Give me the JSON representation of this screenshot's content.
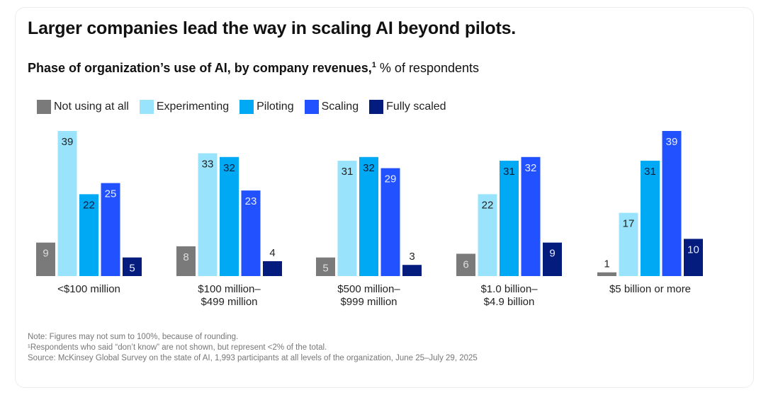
{
  "header": {
    "title": "Larger companies lead the way in scaling AI beyond pilots.",
    "subtitle_bold": "Phase of organization’s use of AI, by company revenues,",
    "subtitle_sup": "1",
    "subtitle_rest": " % of respondents"
  },
  "notes": {
    "line1": "Note: Figures may not sum to 100%, because of rounding.",
    "line2": "¹Respondents who said “don’t know” are not shown, but represent <2% of the total.",
    "line3": " Source: McKinsey Global Survey on the state of AI, 1,993 participants at all levels of the organization, June 25–July 29, 2025"
  },
  "chart_data": {
    "type": "bar",
    "title": "Larger companies lead the way in scaling AI beyond pilots.",
    "subtitle": "Phase of organization’s use of AI, by company revenues, % of respondents",
    "xlabel": "",
    "ylabel": "% of respondents",
    "ylim": [
      0,
      40
    ],
    "grid": false,
    "legend_position": "top-left",
    "categories": [
      [
        "<$100 million"
      ],
      [
        "$100 million–",
        "$499 million"
      ],
      [
        "$500 million–",
        "$999 million"
      ],
      [
        "$1.0 billion–",
        "$4.9 billion"
      ],
      [
        "$5 billion or more"
      ]
    ],
    "series": [
      {
        "name": "Not using at all",
        "color": "#7a7a7a",
        "label_color": "#dddddd",
        "values": [
          9,
          8,
          5,
          6,
          1
        ]
      },
      {
        "name": "Experimenting",
        "color": "#99e4fc",
        "label_color": "#222222",
        "values": [
          39,
          33,
          31,
          22,
          17
        ]
      },
      {
        "name": "Piloting",
        "color": "#00a9f4",
        "label_color": "#0b1d3a",
        "values": [
          22,
          32,
          32,
          31,
          31
        ]
      },
      {
        "name": "Scaling",
        "color": "#2251ff",
        "label_color": "#e6ecff",
        "values": [
          25,
          23,
          29,
          32,
          39
        ]
      },
      {
        "name": "Fully scaled",
        "color": "#051c7f",
        "label_color": "#e6ecff",
        "values": [
          5,
          4,
          3,
          9,
          10
        ]
      }
    ]
  }
}
